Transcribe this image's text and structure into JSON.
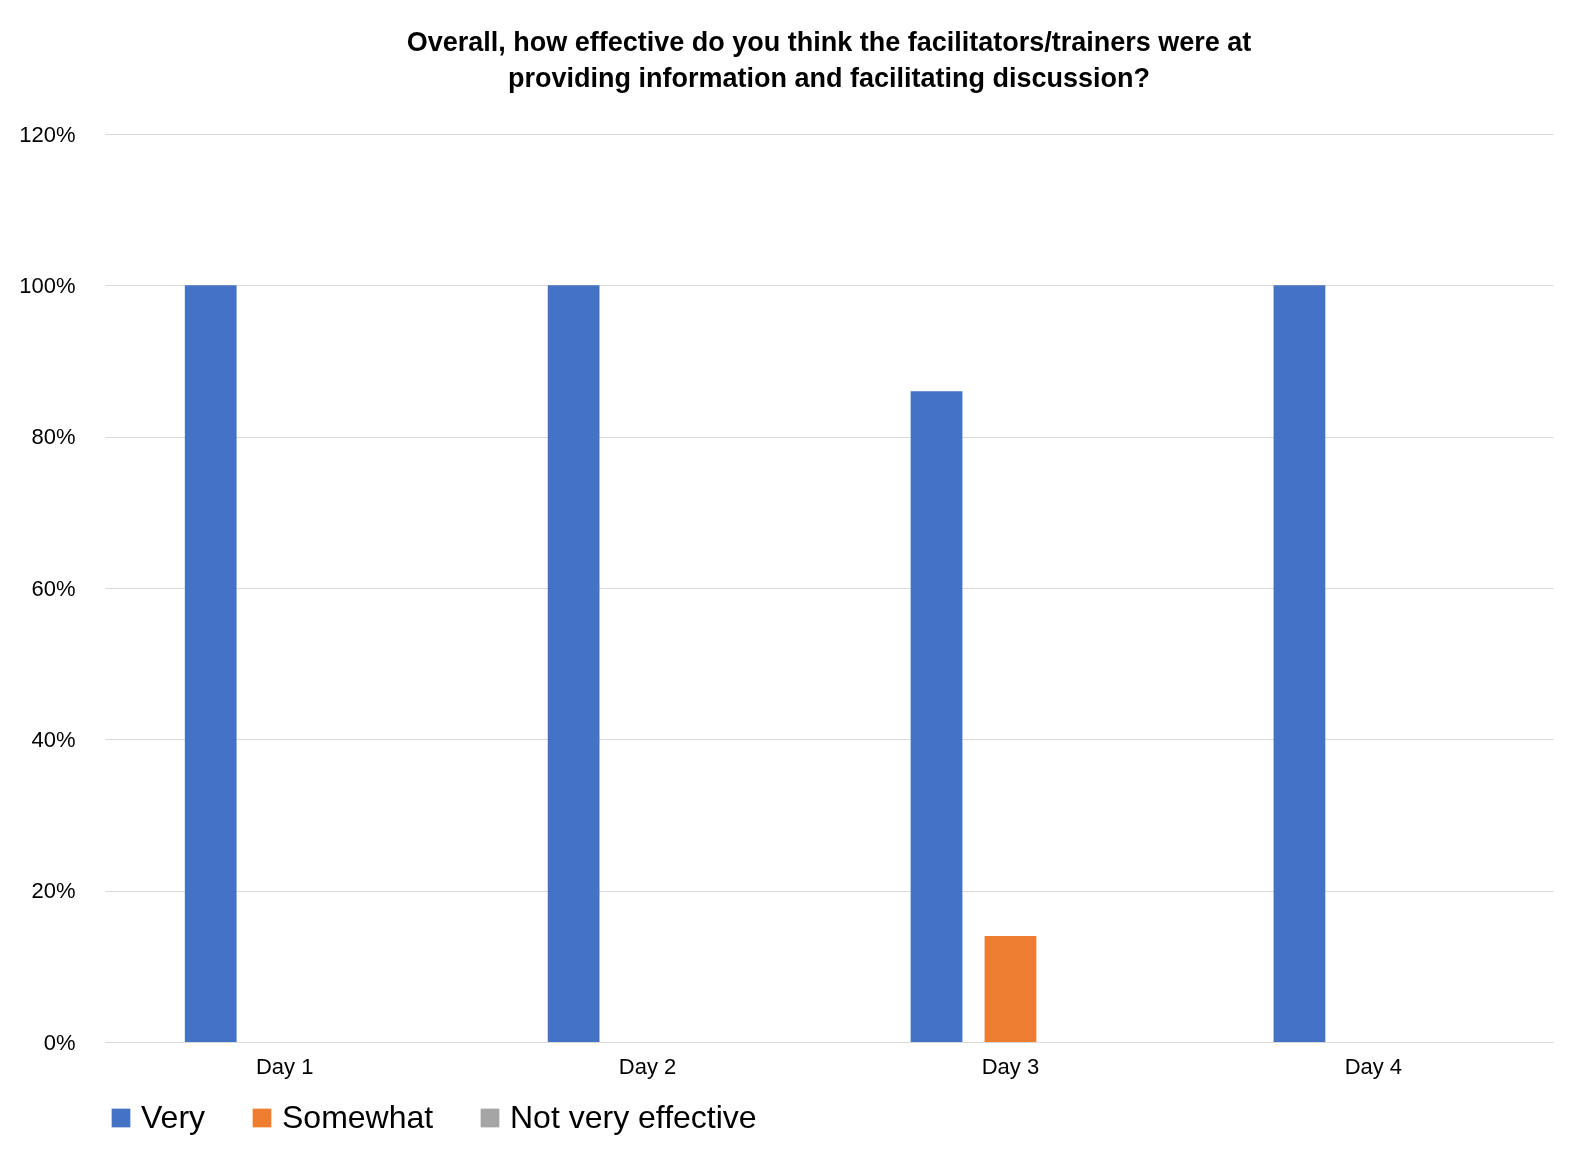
{
  "chart_data": {
    "type": "bar",
    "title": "Overall, how effective do you think the facilitators/trainers were at\nproviding information and facilitating discussion?",
    "categories": [
      "Day 1",
      "Day 2",
      "Day 3",
      "Day 4"
    ],
    "series": [
      {
        "name": "Very",
        "color": "#4472c4",
        "values": [
          100,
          100,
          86,
          100
        ]
      },
      {
        "name": "Somewhat",
        "color": "#ed7d31",
        "values": [
          0,
          0,
          14,
          0
        ]
      },
      {
        "name": "Not very effective",
        "color": "#a5a5a5",
        "values": [
          0,
          0,
          0,
          0
        ]
      }
    ],
    "ylim": [
      0,
      120
    ],
    "yticks": [
      {
        "value": 0,
        "label": "0%"
      },
      {
        "value": 20,
        "label": "20%"
      },
      {
        "value": 40,
        "label": "40%"
      },
      {
        "value": 60,
        "label": "60%"
      },
      {
        "value": 80,
        "label": "80%"
      },
      {
        "value": 100,
        "label": "100%"
      },
      {
        "value": 120,
        "label": "120%"
      }
    ],
    "grid": "y",
    "legend": "bottom"
  }
}
